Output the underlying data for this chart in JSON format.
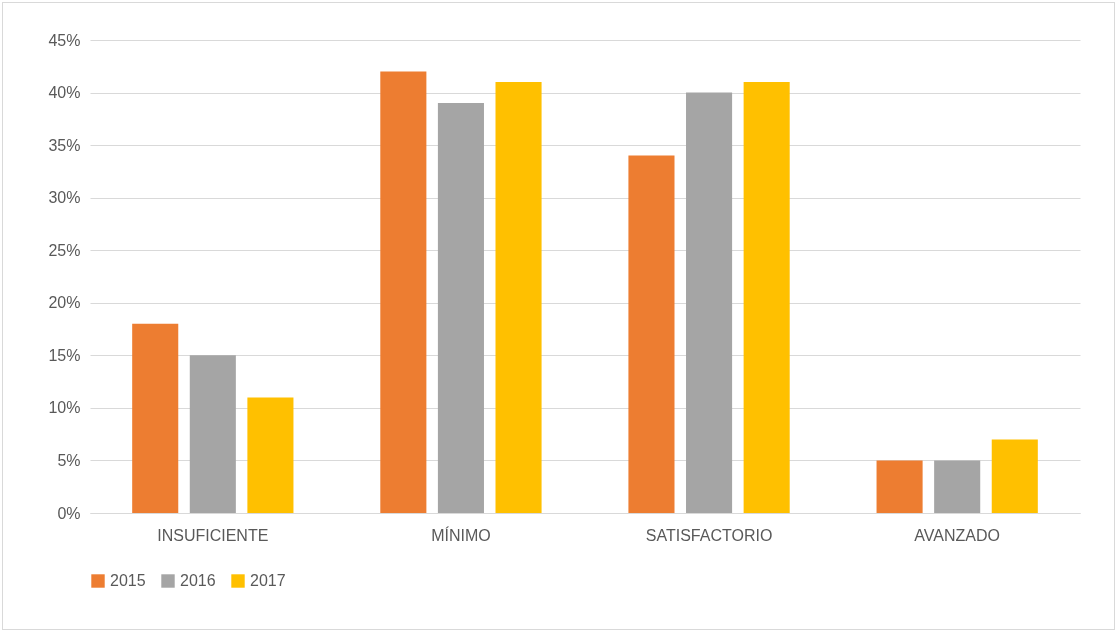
{
  "chart_data": {
    "type": "bar",
    "categories": [
      "INSUFICIENTE",
      "MÍNIMO",
      "SATISFACTORIO",
      "AVANZADO"
    ],
    "series": [
      {
        "name": "2015",
        "color": "#ed7d31",
        "values": [
          18,
          42,
          34,
          5
        ]
      },
      {
        "name": "2016",
        "color": "#a5a5a5",
        "values": [
          15,
          39,
          40,
          5
        ]
      },
      {
        "name": "2017",
        "color": "#ffc000",
        "values": [
          11,
          41,
          41,
          7
        ]
      }
    ],
    "ylim": [
      0,
      45
    ],
    "yticks": [
      {
        "value": 0,
        "label": "0%"
      },
      {
        "value": 5,
        "label": "5%"
      },
      {
        "value": 10,
        "label": "10%"
      },
      {
        "value": 15,
        "label": "15%"
      },
      {
        "value": 20,
        "label": "20%"
      },
      {
        "value": 25,
        "label": "25%"
      },
      {
        "value": 30,
        "label": "30%"
      },
      {
        "value": 35,
        "label": "35%"
      },
      {
        "value": 40,
        "label": "40%"
      },
      {
        "value": 45,
        "label": "45%"
      }
    ],
    "grid": "y",
    "legend": "bottom"
  }
}
